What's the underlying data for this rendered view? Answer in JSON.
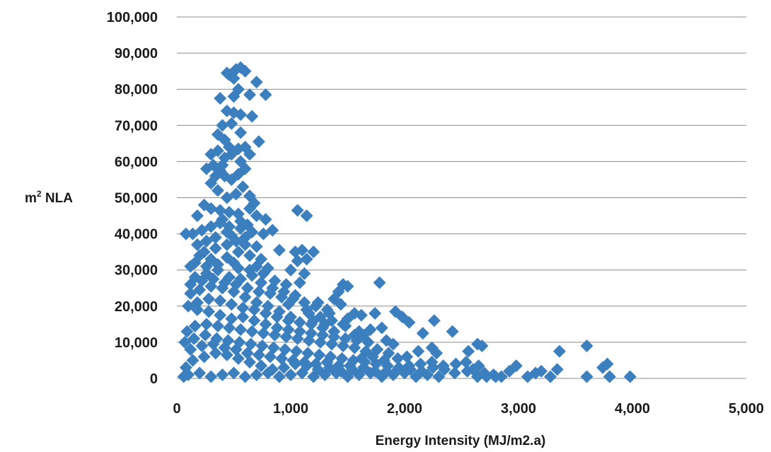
{
  "chart_data": {
    "type": "scatter",
    "xlabel": "Energy Intensity (MJ/m2.a)",
    "ylabel_base": "m",
    "ylabel_sup": "2",
    "ylabel_rest": " NLA",
    "xlim": [
      0,
      5000
    ],
    "ylim": [
      0,
      100000
    ],
    "x_ticks": [
      0,
      1000,
      2000,
      3000,
      4000,
      5000
    ],
    "x_tick_labels": [
      "0",
      "1,000",
      "2,000",
      "3,000",
      "4,000",
      "5,000"
    ],
    "y_ticks": [
      0,
      10000,
      20000,
      30000,
      40000,
      50000,
      60000,
      70000,
      80000,
      90000,
      100000
    ],
    "y_tick_labels": [
      "0",
      "10,000",
      "20,000",
      "30,000",
      "40,000",
      "50,000",
      "60,000",
      "70,000",
      "80,000",
      "90,000",
      "100,000"
    ],
    "grid": "horizontal",
    "legend": "none",
    "marker": "diamond",
    "marker_color": "#3B7FBF",
    "gridline_color": "#8C8C8C",
    "points": [
      [
        460,
        84000
      ],
      [
        520,
        85500
      ],
      [
        560,
        86000
      ],
      [
        600,
        85000
      ],
      [
        440,
        84500
      ],
      [
        500,
        83000
      ],
      [
        540,
        80000
      ],
      [
        700,
        82000
      ],
      [
        780,
        78500
      ],
      [
        640,
        78500
      ],
      [
        380,
        77500
      ],
      [
        500,
        78000
      ],
      [
        440,
        74000
      ],
      [
        500,
        73500
      ],
      [
        560,
        73000
      ],
      [
        660,
        72500
      ],
      [
        400,
        70000
      ],
      [
        480,
        70500
      ],
      [
        560,
        68000
      ],
      [
        720,
        65500
      ],
      [
        360,
        67500
      ],
      [
        420,
        66000
      ],
      [
        300,
        62000
      ],
      [
        360,
        63000
      ],
      [
        420,
        61000
      ],
      [
        480,
        62000
      ],
      [
        540,
        63500
      ],
      [
        600,
        64000
      ],
      [
        640,
        62000
      ],
      [
        560,
        60000
      ],
      [
        260,
        58000
      ],
      [
        320,
        59000
      ],
      [
        380,
        57500
      ],
      [
        420,
        56000
      ],
      [
        480,
        55000
      ],
      [
        540,
        56500
      ],
      [
        600,
        58000
      ],
      [
        300,
        54000
      ],
      [
        360,
        52000
      ],
      [
        440,
        50000
      ],
      [
        520,
        51000
      ],
      [
        640,
        50500
      ],
      [
        240,
        48000
      ],
      [
        300,
        47000
      ],
      [
        380,
        46500
      ],
      [
        460,
        46000
      ],
      [
        540,
        45500
      ],
      [
        640,
        47000
      ],
      [
        700,
        45000
      ],
      [
        780,
        44000
      ],
      [
        1060,
        46500
      ],
      [
        1140,
        45000
      ],
      [
        180,
        45000
      ],
      [
        80,
        40000
      ],
      [
        140,
        40000
      ],
      [
        220,
        41000
      ],
      [
        300,
        42000
      ],
      [
        380,
        43000
      ],
      [
        460,
        42000
      ],
      [
        560,
        41500
      ],
      [
        660,
        40500
      ],
      [
        760,
        40000
      ],
      [
        840,
        41000
      ],
      [
        520,
        38000
      ],
      [
        600,
        37000
      ],
      [
        700,
        36500
      ],
      [
        900,
        35500
      ],
      [
        1040,
        35000
      ],
      [
        1100,
        35500
      ],
      [
        1200,
        35000
      ],
      [
        1060,
        32500
      ],
      [
        1140,
        33000
      ],
      [
        1000,
        30000
      ],
      [
        1120,
        29000
      ],
      [
        800,
        30500
      ],
      [
        700,
        31000
      ],
      [
        500,
        32000
      ],
      [
        300,
        33000
      ],
      [
        200,
        34000
      ],
      [
        120,
        31000
      ],
      [
        160,
        28000
      ],
      [
        260,
        29000
      ],
      [
        360,
        30000
      ],
      [
        460,
        28000
      ],
      [
        560,
        27500
      ],
      [
        660,
        28500
      ],
      [
        760,
        29000
      ],
      [
        860,
        27000
      ],
      [
        960,
        26000
      ],
      [
        1080,
        26500
      ],
      [
        1420,
        24000
      ],
      [
        1460,
        26000
      ],
      [
        1500,
        25500
      ],
      [
        1780,
        26500
      ],
      [
        1380,
        22000
      ],
      [
        1440,
        20500
      ],
      [
        1240,
        21000
      ],
      [
        1140,
        19000
      ],
      [
        1340,
        18000
      ],
      [
        1500,
        16500
      ],
      [
        1560,
        18000
      ],
      [
        1620,
        17500
      ],
      [
        1740,
        18000
      ],
      [
        1920,
        18500
      ],
      [
        1980,
        17000
      ],
      [
        2040,
        15500
      ],
      [
        2260,
        16000
      ],
      [
        1700,
        13500
      ],
      [
        1800,
        14000
      ],
      [
        1480,
        14500
      ],
      [
        1600,
        13000
      ],
      [
        1300,
        15000
      ],
      [
        1200,
        16000
      ],
      [
        1000,
        17000
      ],
      [
        900,
        18500
      ],
      [
        800,
        20000
      ],
      [
        700,
        21000
      ],
      [
        600,
        22500
      ],
      [
        500,
        24000
      ],
      [
        400,
        25000
      ],
      [
        300,
        25500
      ],
      [
        200,
        24500
      ],
      [
        120,
        23500
      ],
      [
        100,
        20000
      ],
      [
        180,
        19000
      ],
      [
        280,
        18500
      ],
      [
        380,
        17500
      ],
      [
        480,
        16500
      ],
      [
        580,
        17000
      ],
      [
        680,
        16000
      ],
      [
        780,
        15000
      ],
      [
        880,
        14000
      ],
      [
        980,
        13500
      ],
      [
        1080,
        13000
      ],
      [
        1180,
        12500
      ],
      [
        1280,
        12000
      ],
      [
        1380,
        11500
      ],
      [
        1480,
        11000
      ],
      [
        1580,
        10500
      ],
      [
        1680,
        10000
      ],
      [
        1840,
        10500
      ],
      [
        1900,
        9500
      ],
      [
        2160,
        12500
      ],
      [
        2420,
        13000
      ],
      [
        2240,
        8500
      ],
      [
        2120,
        7500
      ],
      [
        2640,
        9500
      ],
      [
        2680,
        9000
      ],
      [
        2560,
        7500
      ],
      [
        2280,
        7000
      ],
      [
        2020,
        6000
      ],
      [
        1940,
        5500
      ],
      [
        1860,
        7000
      ],
      [
        1760,
        8000
      ],
      [
        1660,
        7500
      ],
      [
        1560,
        8500
      ],
      [
        1460,
        9000
      ],
      [
        1360,
        9500
      ],
      [
        1260,
        10000
      ],
      [
        1160,
        10500
      ],
      [
        1060,
        11000
      ],
      [
        960,
        11500
      ],
      [
        860,
        12000
      ],
      [
        760,
        12500
      ],
      [
        660,
        13000
      ],
      [
        560,
        13500
      ],
      [
        460,
        14000
      ],
      [
        360,
        14500
      ],
      [
        260,
        15000
      ],
      [
        160,
        14500
      ],
      [
        90,
        13000
      ],
      [
        70,
        10000
      ],
      [
        150,
        11000
      ],
      [
        250,
        12000
      ],
      [
        350,
        11000
      ],
      [
        450,
        10500
      ],
      [
        550,
        10000
      ],
      [
        650,
        9500
      ],
      [
        750,
        9000
      ],
      [
        850,
        8500
      ],
      [
        950,
        8000
      ],
      [
        1050,
        7500
      ],
      [
        1150,
        7000
      ],
      [
        1250,
        6500
      ],
      [
        1350,
        6000
      ],
      [
        1450,
        5500
      ],
      [
        1550,
        5000
      ],
      [
        1650,
        4500
      ],
      [
        1750,
        4000
      ],
      [
        1850,
        3500
      ],
      [
        1950,
        3000
      ],
      [
        2050,
        2500
      ],
      [
        2150,
        2000
      ],
      [
        2250,
        3000
      ],
      [
        2350,
        2500
      ],
      [
        2450,
        4000
      ],
      [
        2550,
        2000
      ],
      [
        2650,
        3500
      ],
      [
        2700,
        1500
      ],
      [
        2780,
        1000
      ],
      [
        2850,
        500
      ],
      [
        2920,
        2000
      ],
      [
        2980,
        3500
      ],
      [
        3080,
        500
      ],
      [
        3150,
        1500
      ],
      [
        3200,
        2000
      ],
      [
        3280,
        500
      ],
      [
        3340,
        2500
      ],
      [
        3360,
        7500
      ],
      [
        3600,
        9000
      ],
      [
        3600,
        500
      ],
      [
        3740,
        3000
      ],
      [
        3780,
        4000
      ],
      [
        3800,
        500
      ],
      [
        3980,
        500
      ],
      [
        2300,
        500
      ],
      [
        2200,
        1000
      ],
      [
        2100,
        500
      ],
      [
        2000,
        1500
      ],
      [
        1900,
        1000
      ],
      [
        1800,
        500
      ],
      [
        1700,
        1500
      ],
      [
        1600,
        1000
      ],
      [
        1500,
        500
      ],
      [
        1400,
        1500
      ],
      [
        1300,
        1000
      ],
      [
        1200,
        500
      ],
      [
        1100,
        1500
      ],
      [
        1000,
        1000
      ],
      [
        900,
        500
      ],
      [
        800,
        1500
      ],
      [
        700,
        1000
      ],
      [
        600,
        500
      ],
      [
        500,
        1500
      ],
      [
        400,
        1000
      ],
      [
        300,
        500
      ],
      [
        200,
        1500
      ],
      [
        100,
        1000
      ],
      [
        60,
        500
      ],
      [
        80,
        3000
      ],
      [
        140,
        5000
      ],
      [
        240,
        6000
      ],
      [
        340,
        7000
      ],
      [
        440,
        6500
      ],
      [
        540,
        5500
      ],
      [
        640,
        4500
      ],
      [
        740,
        3500
      ],
      [
        840,
        2500
      ],
      [
        940,
        3000
      ],
      [
        1040,
        4000
      ],
      [
        1140,
        3500
      ],
      [
        1240,
        2500
      ],
      [
        1340,
        3000
      ],
      [
        1440,
        2000
      ],
      [
        1540,
        2500
      ],
      [
        1640,
        3000
      ],
      [
        1740,
        2000
      ],
      [
        1840,
        2000
      ],
      [
        1940,
        2500
      ],
      [
        2040,
        3500
      ],
      [
        2140,
        4000
      ],
      [
        2240,
        4500
      ],
      [
        2340,
        3500
      ],
      [
        2440,
        1500
      ],
      [
        2540,
        4500
      ],
      [
        2600,
        2500
      ],
      [
        2640,
        500
      ],
      [
        2720,
        500
      ],
      [
        2800,
        500
      ],
      [
        120,
        8000
      ],
      [
        220,
        9000
      ],
      [
        320,
        9500
      ],
      [
        420,
        8500
      ],
      [
        520,
        8000
      ],
      [
        620,
        7000
      ],
      [
        720,
        6500
      ],
      [
        820,
        6000
      ],
      [
        920,
        5500
      ],
      [
        1020,
        5000
      ],
      [
        1120,
        4500
      ],
      [
        1220,
        4000
      ],
      [
        1320,
        4500
      ],
      [
        1420,
        3500
      ],
      [
        1520,
        3500
      ],
      [
        1620,
        5500
      ],
      [
        1720,
        6000
      ],
      [
        1820,
        5000
      ],
      [
        180,
        21000
      ],
      [
        280,
        22000
      ],
      [
        380,
        21500
      ],
      [
        480,
        20500
      ],
      [
        580,
        19500
      ],
      [
        680,
        19000
      ],
      [
        780,
        18000
      ],
      [
        880,
        17000
      ],
      [
        980,
        16000
      ],
      [
        1080,
        15500
      ],
      [
        1180,
        15000
      ],
      [
        1280,
        14000
      ],
      [
        1380,
        13000
      ],
      [
        1560,
        12000
      ],
      [
        240,
        35000
      ],
      [
        340,
        36000
      ],
      [
        440,
        37000
      ],
      [
        540,
        35000
      ],
      [
        640,
        34000
      ],
      [
        740,
        33000
      ],
      [
        340,
        39000
      ],
      [
        440,
        40500
      ],
      [
        600,
        39000
      ],
      [
        260,
        38000
      ],
      [
        180,
        37000
      ],
      [
        120,
        26000
      ],
      [
        220,
        27000
      ],
      [
        320,
        27500
      ],
      [
        420,
        26500
      ],
      [
        520,
        26000
      ],
      [
        620,
        25000
      ],
      [
        720,
        24000
      ],
      [
        820,
        23500
      ],
      [
        920,
        22500
      ],
      [
        1020,
        22000
      ],
      [
        1120,
        21000
      ],
      [
        1220,
        20000
      ],
      [
        1320,
        19000
      ],
      [
        1640,
        12000
      ],
      [
        400,
        59000
      ],
      [
        460,
        64000
      ],
      [
        340,
        56000
      ],
      [
        580,
        53000
      ],
      [
        680,
        48500
      ],
      [
        400,
        44000
      ],
      [
        480,
        39500
      ],
      [
        560,
        43500
      ],
      [
        620,
        42500
      ],
      [
        360,
        31500
      ],
      [
        260,
        31000
      ],
      [
        160,
        32000
      ],
      [
        440,
        33500
      ],
      [
        540,
        30500
      ],
      [
        640,
        30000
      ],
      [
        740,
        26500
      ],
      [
        840,
        25000
      ],
      [
        940,
        24000
      ],
      [
        1040,
        23000
      ],
      [
        980,
        20500
      ],
      [
        1160,
        18000
      ],
      [
        1260,
        17000
      ],
      [
        1360,
        16000
      ],
      [
        1460,
        15000
      ]
    ]
  }
}
